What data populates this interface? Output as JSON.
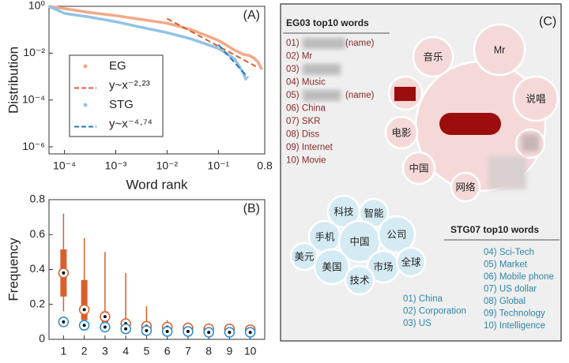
{
  "chart_data": [
    {
      "type": "line",
      "title": "(A)",
      "xlabel": "Word rank",
      "ylabel": "Distribution",
      "xlog": true,
      "ylog": true,
      "xlim": [
        5e-05,
        0.8
      ],
      "ylim": [
        5e-07,
        1
      ],
      "xticks": [
        {
          "value": 0.0001,
          "label": "10⁻⁴"
        },
        {
          "value": 0.001,
          "label": "10⁻³"
        },
        {
          "value": 0.01,
          "label": "10⁻²"
        },
        {
          "value": 0.1,
          "label": "10⁻¹"
        },
        0.8
      ],
      "yticks": [
        {
          "value": 1,
          "label": "10⁰"
        },
        {
          "value": 0.01,
          "label": "10⁻²"
        },
        {
          "value": 0.0001,
          "label": "10⁻⁴"
        },
        {
          "value": 1e-06,
          "label": "10⁻⁶"
        }
      ],
      "legend": "upper left",
      "series": [
        {
          "name": "EG",
          "color": "#f4a886",
          "dash": false,
          "x": [
            5e-05,
            0.0001,
            0.0003,
            0.001,
            0.003,
            0.01,
            0.03,
            0.1,
            0.2,
            0.3,
            0.4,
            0.5,
            0.6,
            0.7
          ],
          "values": [
            1,
            0.8,
            0.55,
            0.4,
            0.28,
            0.19,
            0.1,
            0.035,
            0.014,
            0.009,
            0.008,
            0.006,
            0.004,
            0.002
          ]
        },
        {
          "name": "y~x⁻²·²³",
          "color": "#d9622f",
          "dash": true,
          "x": [
            0.01,
            0.54
          ],
          "values": [
            0.3,
            0.0027
          ]
        },
        {
          "name": "STG",
          "color": "#92c3e6",
          "dash": false,
          "x": [
            5e-05,
            0.0001,
            0.0003,
            0.001,
            0.003,
            0.01,
            0.03,
            0.1,
            0.2,
            0.25,
            0.3,
            0.35
          ],
          "values": [
            1,
            0.5,
            0.35,
            0.22,
            0.13,
            0.075,
            0.04,
            0.016,
            0.006,
            0.003,
            0.0015,
            0.0007
          ]
        },
        {
          "name": "y~x⁻⁴·⁷⁴",
          "color": "#2878b8",
          "dash": true,
          "x": [
            0.1,
            0.38
          ],
          "values": [
            0.023,
            0.0009
          ]
        }
      ]
    },
    {
      "type": "box",
      "title": "(B)",
      "ylabel": "Frequency",
      "x": [
        1,
        2,
        3,
        4,
        5,
        6,
        7,
        8,
        9,
        10
      ],
      "xticks": [
        1,
        2,
        3,
        4,
        5,
        6,
        7,
        8,
        9,
        10
      ],
      "xlim": [
        0.3,
        10.7
      ],
      "ylim": [
        0,
        0.8
      ],
      "yticks": [
        0,
        0.2,
        0.4,
        0.6,
        0.8
      ],
      "series": [
        {
          "color": "#d95f2b",
          "whisker_high": [
            0.72,
            0.58,
            0.5,
            0.38,
            0.19,
            0.11,
            0.09,
            0.08,
            0.07,
            0.07
          ],
          "q3": [
            0.515,
            0.34,
            0.16,
            0.11,
            0.09,
            0.08,
            0.07,
            0.065,
            0.06,
            0.06
          ],
          "median": [
            0.38,
            0.17,
            0.13,
            0.09,
            0.075,
            0.07,
            0.065,
            0.06,
            0.06,
            0.055
          ],
          "q1": [
            0.245,
            0.11,
            0.09,
            0.075,
            0.065,
            0.06,
            0.055,
            0.05,
            0.05,
            0.045
          ],
          "whisker_low": [
            0.16,
            0.08,
            0.06,
            0.05,
            0.05,
            0.045,
            0.04,
            0.04,
            0.04,
            0.035
          ]
        },
        {
          "color": "#2a8ad4",
          "median": [
            0.1,
            0.08,
            0.07,
            0.06,
            0.05,
            0.045,
            0.045,
            0.04,
            0.04,
            0.04
          ]
        }
      ]
    }
  ],
  "panel_c": {
    "label": "(C)",
    "eg_title": "EG03 top10 words",
    "eg_items": [
      [
        "01)",
        "(name)"
      ],
      [
        "02) Mr"
      ],
      [
        "03)"
      ],
      [
        "04) Music"
      ],
      [
        "05)",
        "(name)"
      ],
      [
        "06) China"
      ],
      [
        "07) SKR"
      ],
      [
        "08) Diss"
      ],
      [
        "09) Internet"
      ],
      [
        "10) Movie"
      ]
    ],
    "eg_bubbles": [
      "音乐",
      "Mr",
      "说唱",
      "电影",
      "中国",
      "网络"
    ],
    "stg_title": "STG07 top10 words",
    "stg_items": [
      "01) China",
      "02) Corporation",
      "03) US",
      "04) Sci-Tech",
      "05) Market",
      "06) Mobile phone",
      "07) US dollar",
      "08) Global",
      "09) Technology",
      "10) Intelligence"
    ],
    "stg_bubbles": [
      "科技",
      "智能",
      "手机",
      "中国",
      "公司",
      "美元",
      "美国",
      "市场",
      "全球",
      "技术"
    ]
  }
}
